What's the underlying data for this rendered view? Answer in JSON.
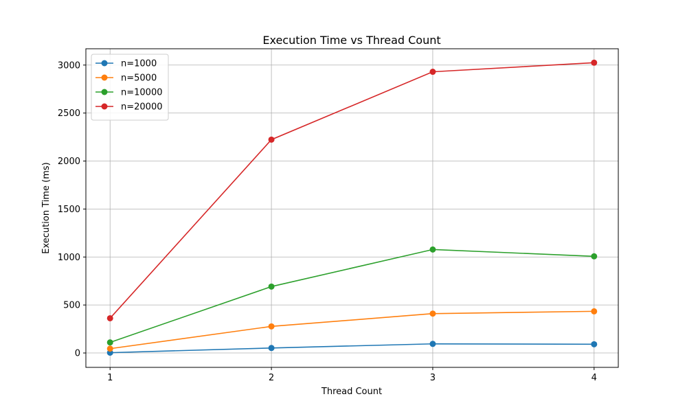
{
  "chart_data": {
    "type": "line",
    "title": "Execution Time vs Thread Count",
    "xlabel": "Thread Count",
    "ylabel": "Execution Time (ms)",
    "x": [
      1,
      2,
      3,
      4
    ],
    "xticks": [
      1,
      2,
      3,
      4
    ],
    "xlim": [
      0.85,
      4.15
    ],
    "yticks": [
      0,
      500,
      1000,
      1500,
      2000,
      2500,
      3000
    ],
    "ylim": [
      -150,
      3170
    ],
    "grid": true,
    "legend_position": "top-left",
    "series": [
      {
        "name": "n=1000",
        "color": "#1f77b4",
        "values": [
          3,
          52,
          95,
          91
        ]
      },
      {
        "name": "n=5000",
        "color": "#ff7f0e",
        "values": [
          45,
          277,
          410,
          434
        ]
      },
      {
        "name": "n=10000",
        "color": "#2ca02c",
        "values": [
          110,
          692,
          1078,
          1007
        ]
      },
      {
        "name": "n=20000",
        "color": "#d62728",
        "values": [
          362,
          2223,
          2930,
          3025
        ]
      }
    ]
  }
}
